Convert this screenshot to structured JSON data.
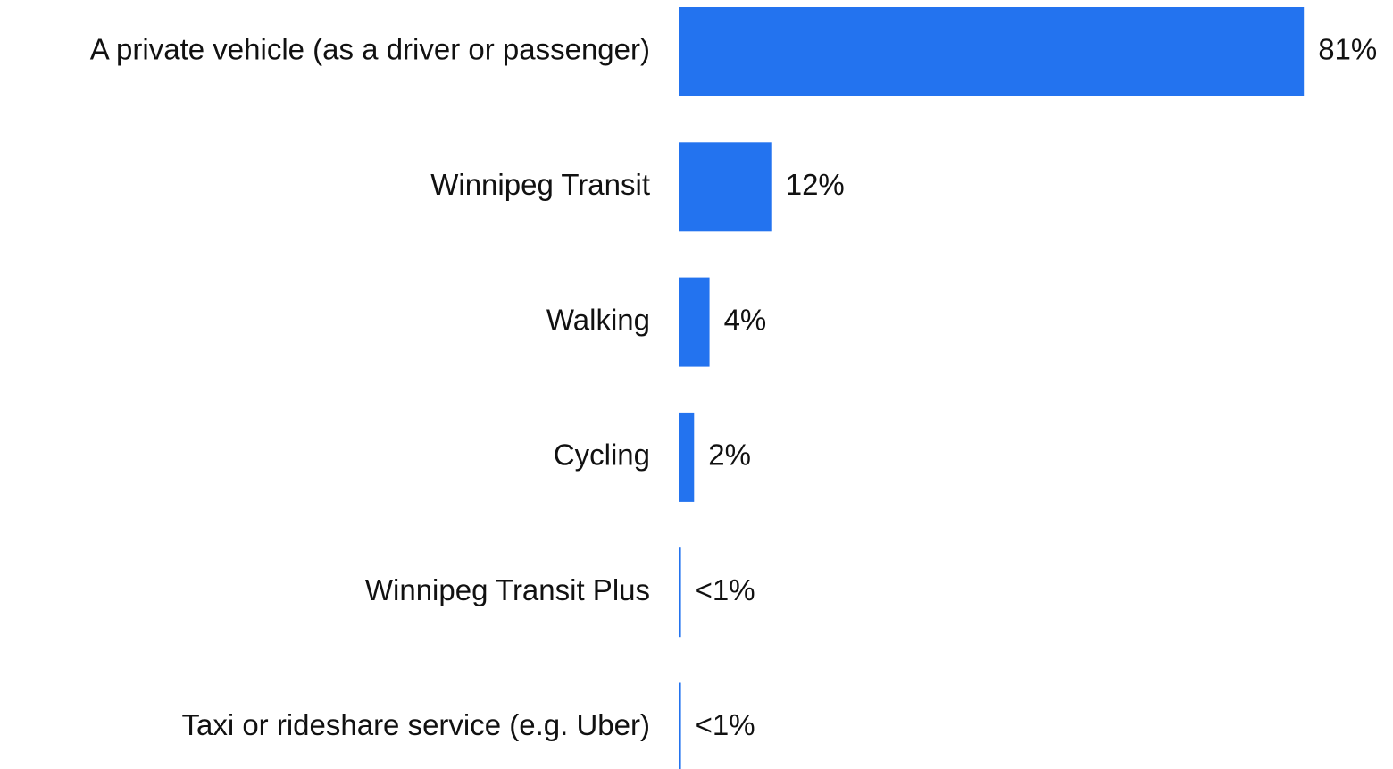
{
  "chart_data": {
    "type": "bar",
    "orientation": "horizontal",
    "categories": [
      "A private vehicle (as a driver or passenger)",
      "Winnipeg Transit",
      "Walking",
      "Cycling",
      "Winnipeg Transit Plus",
      "Taxi or rideshare service (e.g. Uber)"
    ],
    "values": [
      81,
      12,
      4,
      2,
      0.3,
      0.3
    ],
    "value_labels": [
      "81%",
      "12%",
      "4%",
      "2%",
      "<1%",
      "<1%"
    ],
    "color": "#2373ef",
    "xlim": [
      0,
      90
    ]
  }
}
